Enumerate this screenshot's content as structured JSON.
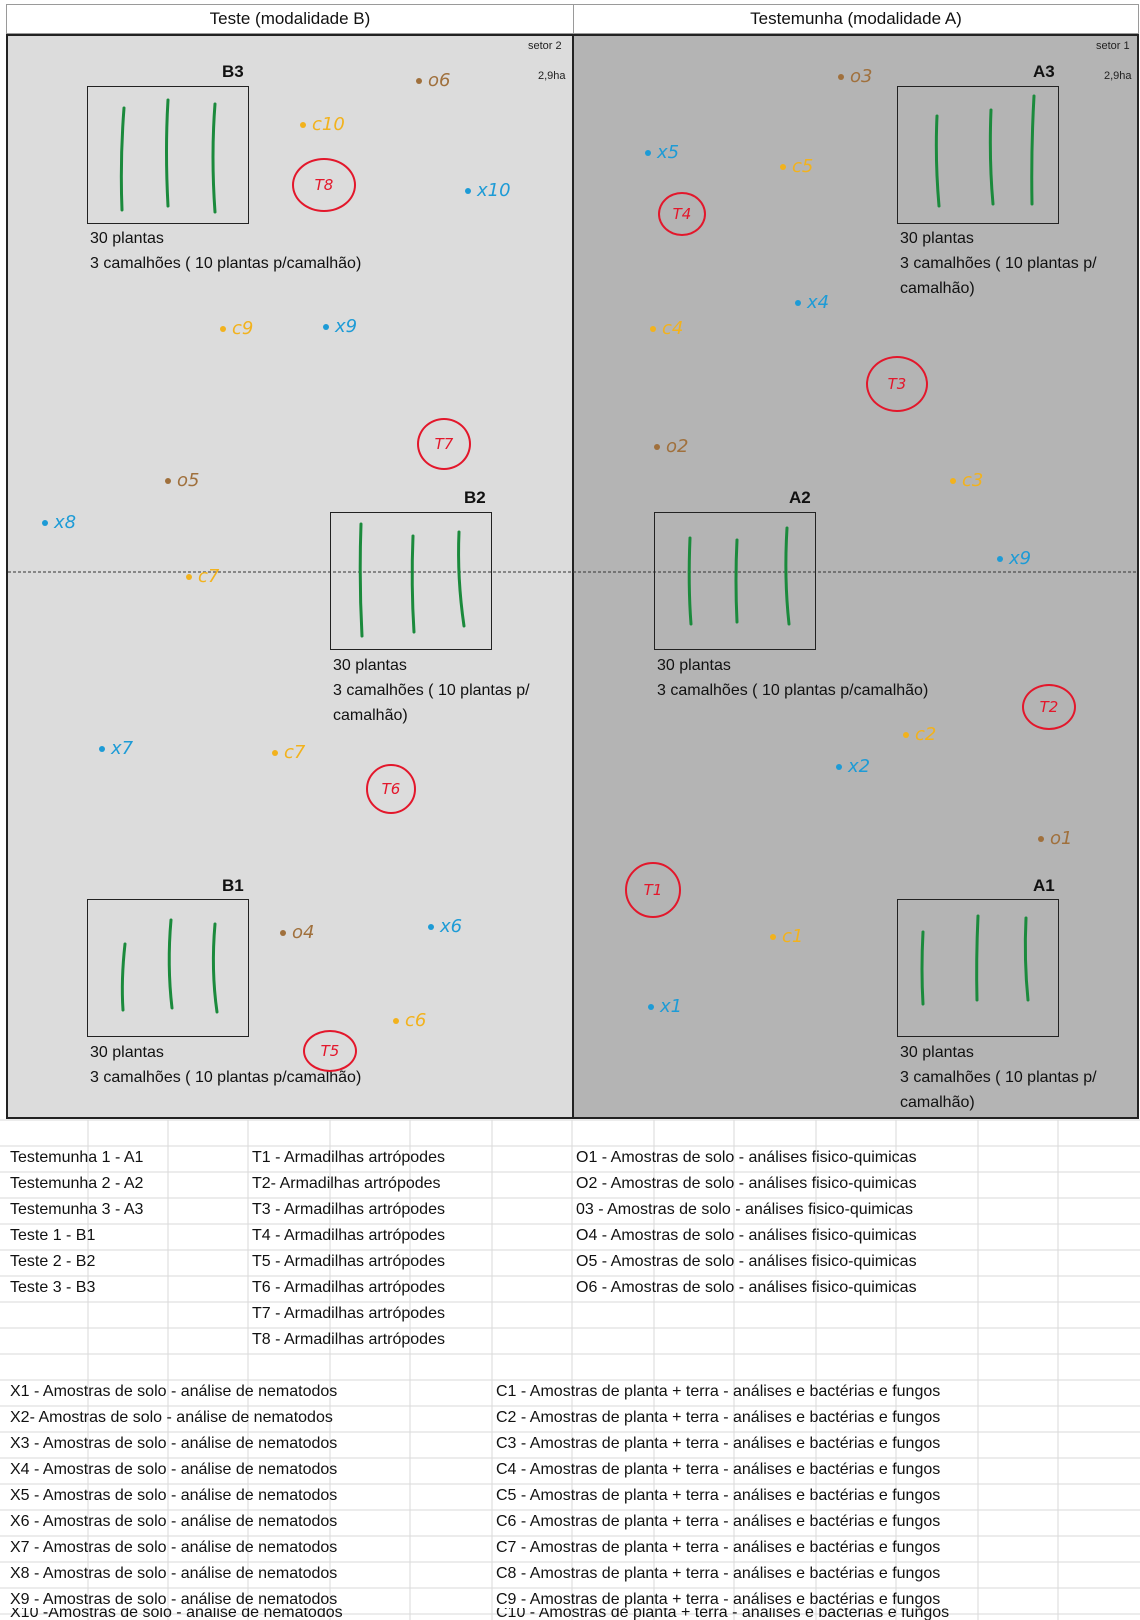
{
  "headers": {
    "left": "Teste (modalidade B)",
    "right": "Testemunha (modalidade A)"
  },
  "panels": {
    "left": {
      "setor": "setor 2",
      "area": "2,9ha",
      "color": "#dcdcdc"
    },
    "right": {
      "setor": "setor 1",
      "area": "2,9ha",
      "color": "#b4b4b4"
    }
  },
  "plots": {
    "B3": {
      "label": "B3",
      "cap1": "30 plantas",
      "cap2": "3 camalhões ( 10 plantas p/camalhão)"
    },
    "B2": {
      "label": "B2",
      "cap1": "30 plantas",
      "cap2": "3 camalhões ( 10 plantas p/",
      "cap3": "camalhão)"
    },
    "B1": {
      "label": "B1",
      "cap1": "30 plantas",
      "cap2": "3 camalhões ( 10 plantas p/camalhão)"
    },
    "A3": {
      "label": "A3",
      "cap1": "30 plantas",
      "cap2": "3 camalhões ( 10 plantas p/",
      "cap3": "camalhão)"
    },
    "A2": {
      "label": "A2",
      "cap1": "30 plantas",
      "cap2": "3 camalhões ( 10 plantas p/camalhão)"
    },
    "A1": {
      "label": "A1",
      "cap1": "30 plantas",
      "cap2": "3 camalhões ( 10 plantas p/",
      "cap3": "camalhão)"
    }
  },
  "markers": {
    "soil": [
      "o6",
      "o3",
      "o5",
      "o2",
      "o4",
      "o1"
    ],
    "nematode": [
      "x10",
      "x5",
      "x4",
      "x9",
      "x8",
      "x9",
      "x7",
      "x2",
      "x6",
      "x1"
    ],
    "plant": [
      "c10",
      "c5",
      "c9",
      "c4",
      "c3",
      "c7",
      "c2",
      "c7",
      "c1",
      "c6"
    ],
    "traps": [
      "T8",
      "T4",
      "T3",
      "T7",
      "T2",
      "T6",
      "T1",
      "T5"
    ]
  },
  "colors": {
    "soil": "#a0703c",
    "nematode": "#1d9bd6",
    "plant": "#f2b21d",
    "trap": "#e3172b",
    "row": "#1b8a3c"
  },
  "legend1": {
    "col1": [
      "Testemunha 1 - A1",
      "Testemunha 2 - A2",
      "Testemunha 3 - A3",
      "Teste 1 - B1",
      "Teste 2 - B2",
      "Teste 3 - B3"
    ],
    "col2": [
      "T1 - Armadilhas artrópodes",
      "T2- Armadilhas artrópodes",
      "T3 - Armadilhas artrópodes",
      "T4 - Armadilhas artrópodes",
      "T5 - Armadilhas artrópodes",
      "T6 - Armadilhas artrópodes",
      "T7 - Armadilhas artrópodes",
      "T8 - Armadilhas artrópodes"
    ],
    "col3": [
      "O1 - Amostras de solo - análises fisico-quimicas",
      "O2 - Amostras de solo - análises fisico-quimicas",
      "03 - Amostras de solo - análises fisico-quimicas",
      "O4 - Amostras de solo - análises fisico-quimicas",
      "O5 - Amostras de solo - análises fisico-quimicas",
      "O6 - Amostras de solo - análises fisico-quimicas"
    ]
  },
  "legend2": {
    "col1": [
      "X1 - Amostras de solo - análise de nematodos",
      "X2- Amostras de solo - análise de nematodos",
      "X3 - Amostras de solo - análise de nematodos",
      "X4 - Amostras de solo - análise de nematodos",
      "X5 - Amostras de solo - análise de nematodos",
      "X6 - Amostras de solo - análise de nematodos",
      "X7 - Amostras de solo - análise de nematodos",
      "X8 - Amostras de solo - análise de nematodos",
      "X9 - Amostras de solo - análise de nematodos",
      "X10 -Amostras de solo - análise de nematodos"
    ],
    "col2": [
      "C1 - Amostras de planta + terra - análises e bactérias e fungos",
      "C2 - Amostras de planta + terra - análises e bactérias e fungos",
      "C3 - Amostras de planta + terra - análises e bactérias e fungos",
      "C4 - Amostras de planta + terra - análises e bactérias e fungos",
      "C5 - Amostras de planta + terra - análises e bactérias e fungos",
      "C6 - Amostras de planta + terra - análises e bactérias e fungos",
      "C7 - Amostras de planta + terra - análises e bactérias e fungos",
      "C8 - Amostras de planta + terra - análises e bactérias e fungos",
      "C9 - Amostras de planta + terra - análises e bactérias e fungos",
      "C10 - Amostras de planta + terra - análises e bactérias e fungos"
    ]
  }
}
